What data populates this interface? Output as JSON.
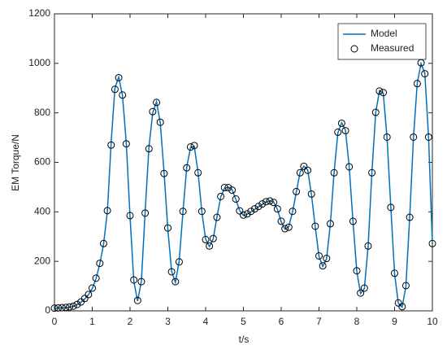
{
  "chart_data": {
    "type": "line_scatter",
    "xlabel": "t/s",
    "ylabel": "EM Torque/N",
    "xlim": [
      0,
      10
    ],
    "xticks": [
      0,
      1,
      2,
      3,
      4,
      5,
      6,
      7,
      8,
      9,
      10
    ],
    "ylim": [
      0,
      1200
    ],
    "yticks": [
      0,
      200,
      400,
      600,
      800,
      1000,
      1200
    ],
    "legend": "upper right",
    "x": [
      0,
      0.1,
      0.2,
      0.3,
      0.4,
      0.5,
      0.6,
      0.7,
      0.8,
      0.9,
      1,
      1.1,
      1.2,
      1.3,
      1.4,
      1.5,
      1.6,
      1.7,
      1.8,
      1.9,
      2,
      2.1,
      2.2,
      2.3,
      2.4,
      2.5,
      2.6,
      2.7,
      2.8,
      2.9,
      3,
      3.1,
      3.2,
      3.3,
      3.4,
      3.5,
      3.6,
      3.7,
      3.8,
      3.9,
      4,
      4.1,
      4.2,
      4.3,
      4.4,
      4.5,
      4.6,
      4.7,
      4.8,
      4.9,
      5,
      5.1,
      5.2,
      5.3,
      5.4,
      5.5,
      5.6,
      5.7,
      5.8,
      5.9,
      6,
      6.1,
      6.2,
      6.3,
      6.4,
      6.5,
      6.6,
      6.7,
      6.8,
      6.9,
      7,
      7.1,
      7.2,
      7.3,
      7.4,
      7.5,
      7.6,
      7.7,
      7.8,
      7.9,
      8,
      8.1,
      8.2,
      8.3,
      8.4,
      8.5,
      8.6,
      8.7,
      8.8,
      8.9,
      9,
      9.1,
      9.2,
      9.3,
      9.4,
      9.5,
      9.6,
      9.7,
      9.8,
      9.9,
      10
    ],
    "series": [
      {
        "name": "Model",
        "kind": "line",
        "color": "#0072bd",
        "values": [
          10,
          12,
          12,
          13,
          15,
          18,
          25,
          35,
          48,
          65,
          90,
          130,
          190,
          270,
          400,
          680,
          900,
          945,
          870,
          680,
          380,
          120,
          40,
          120,
          400,
          660,
          800,
          845,
          760,
          560,
          330,
          160,
          115,
          200,
          400,
          580,
          660,
          665,
          560,
          400,
          290,
          260,
          290,
          380,
          460,
          495,
          500,
          490,
          450,
          405,
          385,
          390,
          400,
          410,
          420,
          430,
          440,
          445,
          440,
          410,
          360,
          330,
          340,
          400,
          480,
          560,
          585,
          570,
          470,
          340,
          220,
          180,
          210,
          350,
          560,
          720,
          760,
          730,
          580,
          360,
          160,
          70,
          90,
          260,
          560,
          800,
          890,
          880,
          700,
          420,
          150,
          30,
          15,
          100,
          380,
          700,
          920,
          1000,
          960,
          700,
          270
        ]
      },
      {
        "name": "Measured",
        "kind": "scatter",
        "color": "#000000",
        "values": [
          11,
          12,
          13,
          14,
          16,
          19,
          26,
          36,
          50,
          66,
          92,
          132,
          192,
          272,
          405,
          670,
          895,
          942,
          872,
          675,
          385,
          125,
          42,
          118,
          395,
          655,
          805,
          842,
          762,
          555,
          335,
          158,
          118,
          198,
          402,
          578,
          662,
          668,
          558,
          402,
          288,
          262,
          292,
          378,
          462,
          498,
          498,
          488,
          452,
          404,
          387,
          392,
          402,
          412,
          422,
          432,
          441,
          444,
          438,
          412,
          362,
          332,
          338,
          402,
          482,
          558,
          584,
          568,
          472,
          342,
          222,
          182,
          212,
          352,
          558,
          722,
          758,
          728,
          582,
          362,
          162,
          72,
          92,
          262,
          558,
          802,
          888,
          882,
          702,
          418,
          152,
          32,
          17,
          102,
          378,
          702,
          918,
          1002,
          958,
          702,
          272
        ]
      }
    ]
  }
}
